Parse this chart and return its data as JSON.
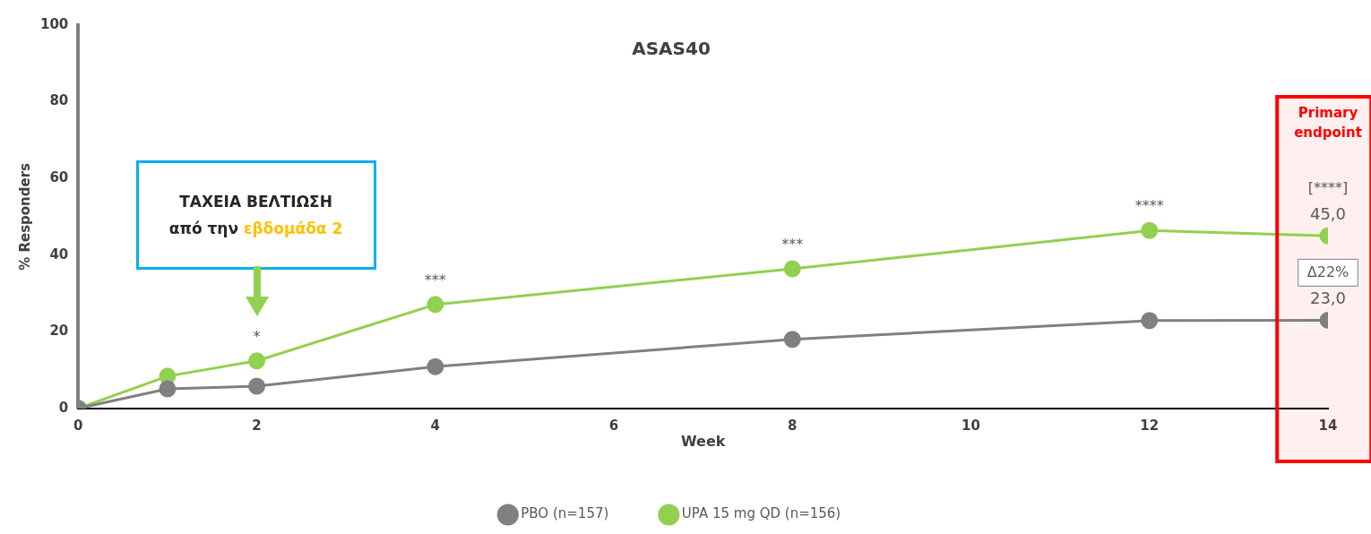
{
  "chart_data": {
    "type": "line",
    "title": "ASAS40",
    "xlabel": "Week",
    "ylabel": "% Responders",
    "x": [
      0,
      1,
      2,
      4,
      8,
      12,
      14
    ],
    "series": [
      {
        "name": "PBO (n=157)",
        "color": "#808080",
        "values": [
          0,
          5.1,
          5.8,
          10.9,
          18,
          22.9,
          23.0
        ],
        "value_labels": [
          null,
          null,
          null,
          null,
          null,
          null,
          "23,0"
        ]
      },
      {
        "name": "UPA 15 mg QD (n=156)",
        "color": "#92d050",
        "values": [
          0,
          8.4,
          12.4,
          27.1,
          36.4,
          46.4,
          45.0
        ],
        "value_labels": [
          null,
          null,
          null,
          null,
          null,
          null,
          "45,0"
        ]
      }
    ],
    "xlim": [
      0,
      14
    ],
    "xticks": [
      0,
      2,
      4,
      6,
      8,
      10,
      12,
      14
    ],
    "ylim": [
      0,
      100
    ],
    "yticks": [
      0,
      20,
      40,
      60,
      80,
      100
    ],
    "grid": false,
    "legend": "bottom",
    "marker": "circle",
    "line_style": "solid",
    "bands": [
      {
        "axis": "x",
        "from": 13.43,
        "to": 14,
        "label": "Primary endpoint",
        "color": "#ff0000"
      }
    ],
    "annotations": [
      "ΤΑΧΕΙΑ ΒΕΛΤΙΩΣΗ",
      "από την",
      "εβδομάδα 2",
      "Δ22%",
      {
        "text": "*",
        "x": 2,
        "y": 12.4
      },
      {
        "text": "***",
        "x": 4,
        "y": 27.1
      },
      {
        "text": "***",
        "x": 8,
        "y": 36.4
      },
      {
        "text": "****",
        "x": 12,
        "y": 46.4
      },
      {
        "text": "[****]",
        "x": 14,
        "y": 45.0
      }
    ]
  }
}
